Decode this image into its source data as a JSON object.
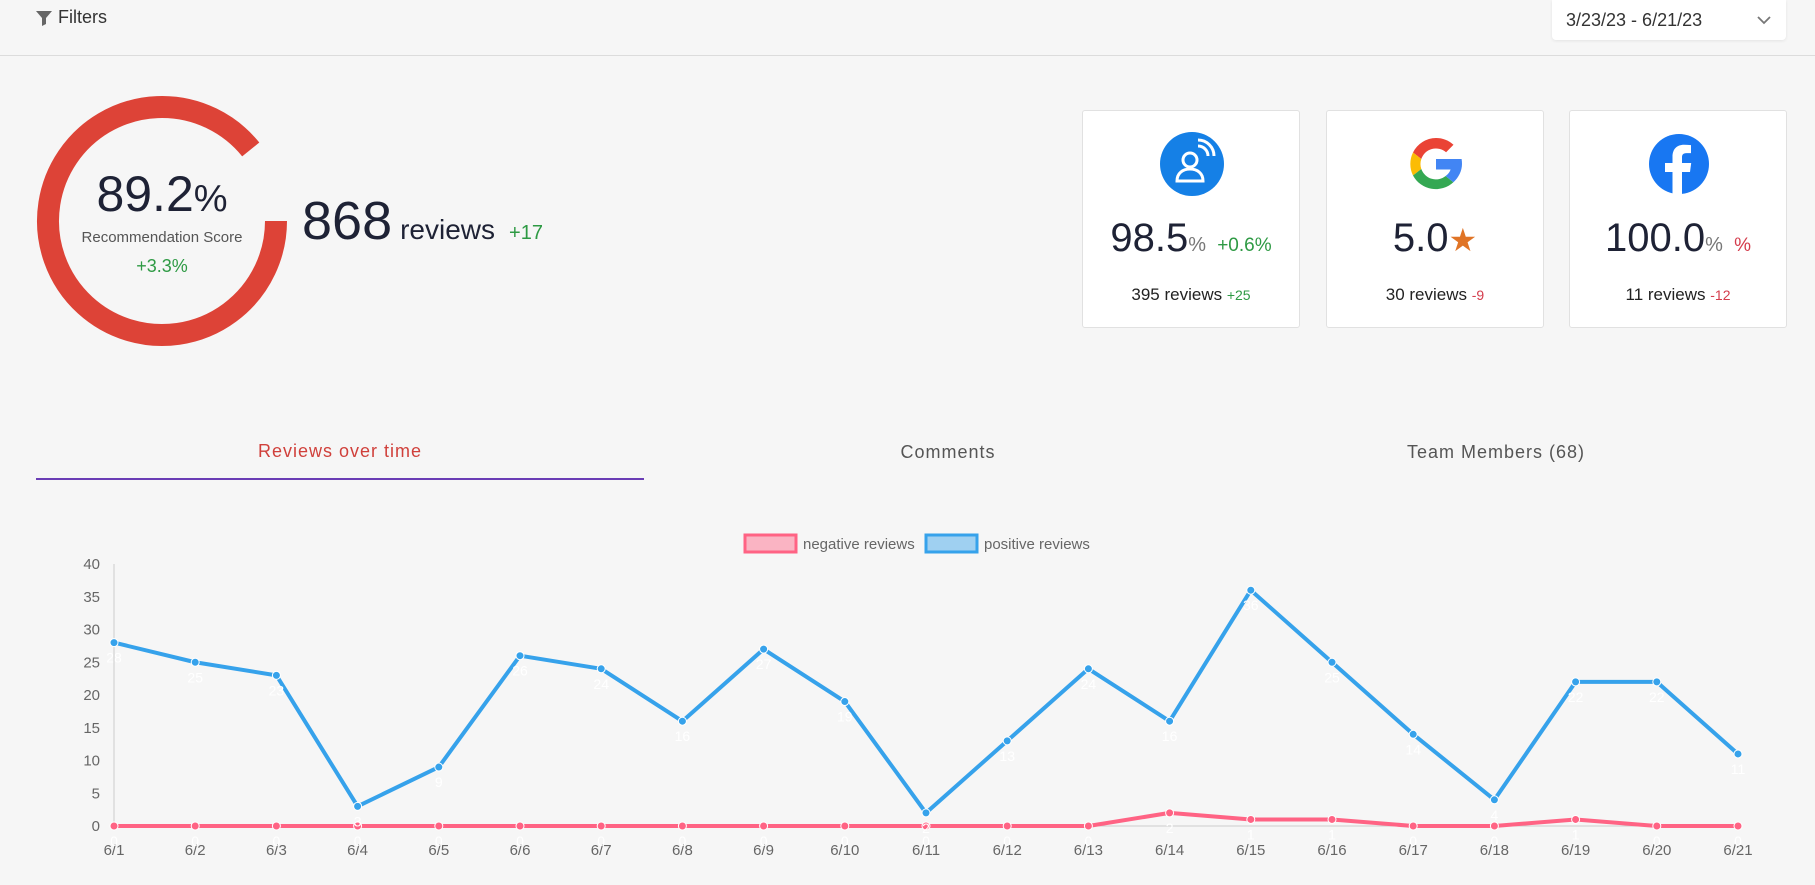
{
  "topbar": {
    "filters_label": "Filters",
    "date_range": "3/23/23 - 6/21/23"
  },
  "summary": {
    "score_value": "89.2",
    "score_unit": "%",
    "score_label": "Recommendation Score",
    "score_delta": "+3.3%",
    "score_fraction": 0.892,
    "total_reviews": "868",
    "total_reviews_word": "reviews",
    "total_reviews_delta": "+17"
  },
  "colors": {
    "gauge": "#dd4337",
    "positive": "#36a2eb",
    "negative": "#ff6384",
    "tab_active": "#d0403b",
    "tab_underline": "#6a3db5"
  },
  "sources": [
    {
      "icon": "review-platform-icon",
      "score": "98.5",
      "unit": "%",
      "delta": "+0.6%",
      "delta_dir": "up",
      "reviews": "395 reviews",
      "reviews_delta": "+25",
      "reviews_dir": "up"
    },
    {
      "icon": "google-icon",
      "score": "5.0",
      "unit": "★",
      "reviews": "30 reviews",
      "reviews_delta": "-9",
      "reviews_dir": "down"
    },
    {
      "icon": "facebook-icon",
      "score": "100.0",
      "unit": "%",
      "delta": "%",
      "delta_dir": "down",
      "reviews": "11 reviews",
      "reviews_delta": "-12",
      "reviews_dir": "down"
    }
  ],
  "tabs": [
    {
      "label": "Reviews over time",
      "active": true
    },
    {
      "label": "Comments",
      "active": false
    },
    {
      "label": "Team Members (68)",
      "active": false
    }
  ],
  "chart_data": {
    "type": "line",
    "categories": [
      "6/1",
      "6/2",
      "6/3",
      "6/4",
      "6/5",
      "6/6",
      "6/7",
      "6/8",
      "6/9",
      "6/10",
      "6/11",
      "6/12",
      "6/13",
      "6/14",
      "6/15",
      "6/16",
      "6/17",
      "6/18",
      "6/19",
      "6/20",
      "6/21"
    ],
    "series": [
      {
        "name": "negative reviews",
        "color": "#ff6384",
        "values": [
          0,
          0,
          0,
          0,
          0,
          0,
          0,
          0,
          0,
          0,
          0,
          0,
          0,
          2,
          1,
          1,
          0,
          0,
          1,
          0,
          0
        ]
      },
      {
        "name": "positive reviews",
        "color": "#36a2eb",
        "values": [
          28,
          25,
          23,
          3,
          9,
          26,
          24,
          16,
          27,
          19,
          2,
          13,
          24,
          16,
          36,
          25,
          14,
          4,
          22,
          22,
          11
        ]
      }
    ],
    "ylim": [
      0,
      40
    ],
    "yticks": [
      0,
      5,
      10,
      15,
      20,
      25,
      30,
      35,
      40
    ],
    "legend": "top-center",
    "grid": false
  }
}
